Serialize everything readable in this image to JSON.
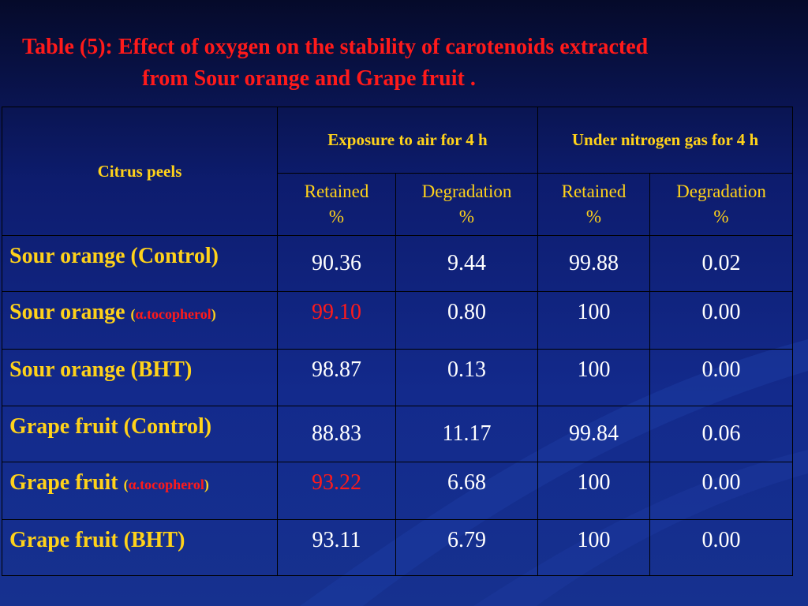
{
  "title": {
    "line1": "Table (5): Effect of oxygen on the stability of carotenoids extracted",
    "line2": "from Sour orange and Grape fruit ."
  },
  "table": {
    "corner_header": "Citrus peels",
    "group_headers": [
      "Exposure to air for 4 h",
      "Under nitrogen gas for 4 h"
    ],
    "sub_headers": [
      {
        "line1": "Retained",
        "line2": "%"
      },
      {
        "line1": "Degradation",
        "line2": "%"
      },
      {
        "line1": "Retained",
        "line2": "%"
      },
      {
        "line1": "Degradation",
        "line2": "%"
      }
    ],
    "rows": [
      {
        "name": "Sour orange (Control)",
        "values": [
          "90.36",
          "9.44",
          "99.88",
          "0.02"
        ]
      },
      {
        "name": "Sour orange",
        "paren_open": "(",
        "note": "α.tocopherol",
        "paren_close": ")",
        "values": [
          "99.10",
          "0.80",
          "100",
          "0.00"
        ]
      },
      {
        "name": "Sour orange (BHT)",
        "values": [
          "98.87",
          "0.13",
          "100",
          "0.00"
        ]
      },
      {
        "name": "Grape fruit (Control)",
        "values": [
          "88.83",
          "11.17",
          "99.84",
          "0.06"
        ]
      },
      {
        "name": "Grape fruit",
        "paren_open": "(",
        "note": "α.tocopherol",
        "paren_close": ")",
        "values": [
          "93.22",
          "6.68",
          "100",
          "0.00"
        ]
      },
      {
        "name": "Grape fruit (BHT)",
        "values": [
          "93.11",
          "6.79",
          "100",
          "0.00"
        ]
      }
    ],
    "highlight_color": "#ff1a1a",
    "label_color": "#ffd21a"
  }
}
